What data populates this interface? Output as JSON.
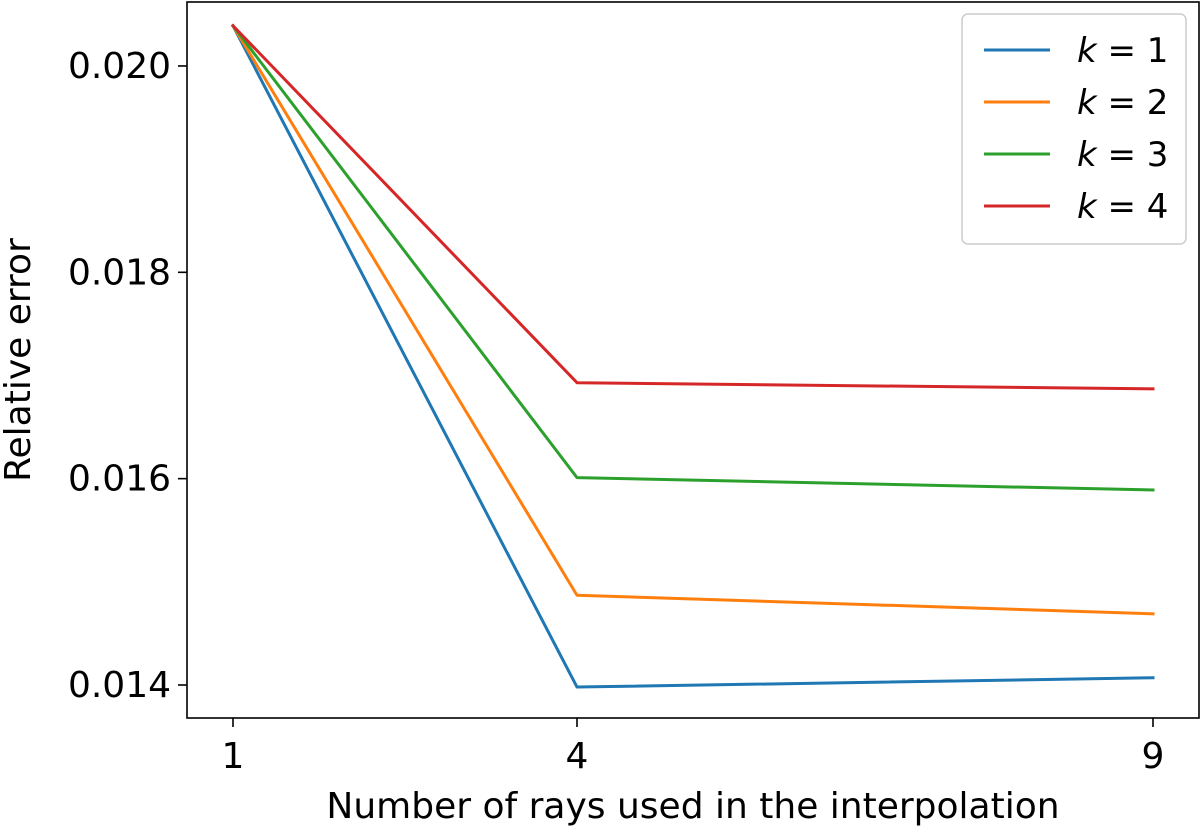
{
  "chart_data": {
    "type": "line",
    "title": "",
    "xlabel": "Number of rays used in the interpolation",
    "ylabel": "Relative error",
    "x": [
      1,
      4,
      9
    ],
    "x_ticks": [
      "1",
      "4",
      "9"
    ],
    "ylim": [
      0.01368,
      0.02062
    ],
    "y_ticks": [
      "0.014",
      "0.016",
      "0.018",
      "0.020"
    ],
    "y_tick_values": [
      0.014,
      0.016,
      0.018,
      0.02
    ],
    "grid": false,
    "legend_position": "top-right",
    "series": [
      {
        "name": "k = 1",
        "color": "#1f77b4",
        "values": [
          0.02039,
          0.01398,
          0.01407
        ]
      },
      {
        "name": "k = 2",
        "color": "#ff7f0e",
        "values": [
          0.02039,
          0.01487,
          0.01469
        ]
      },
      {
        "name": "k = 3",
        "color": "#2ca02c",
        "values": [
          0.02039,
          0.01601,
          0.01589
        ]
      },
      {
        "name": "k = 4",
        "color": "#d62728",
        "values": [
          0.02039,
          0.01693,
          0.01687
        ]
      }
    ]
  }
}
